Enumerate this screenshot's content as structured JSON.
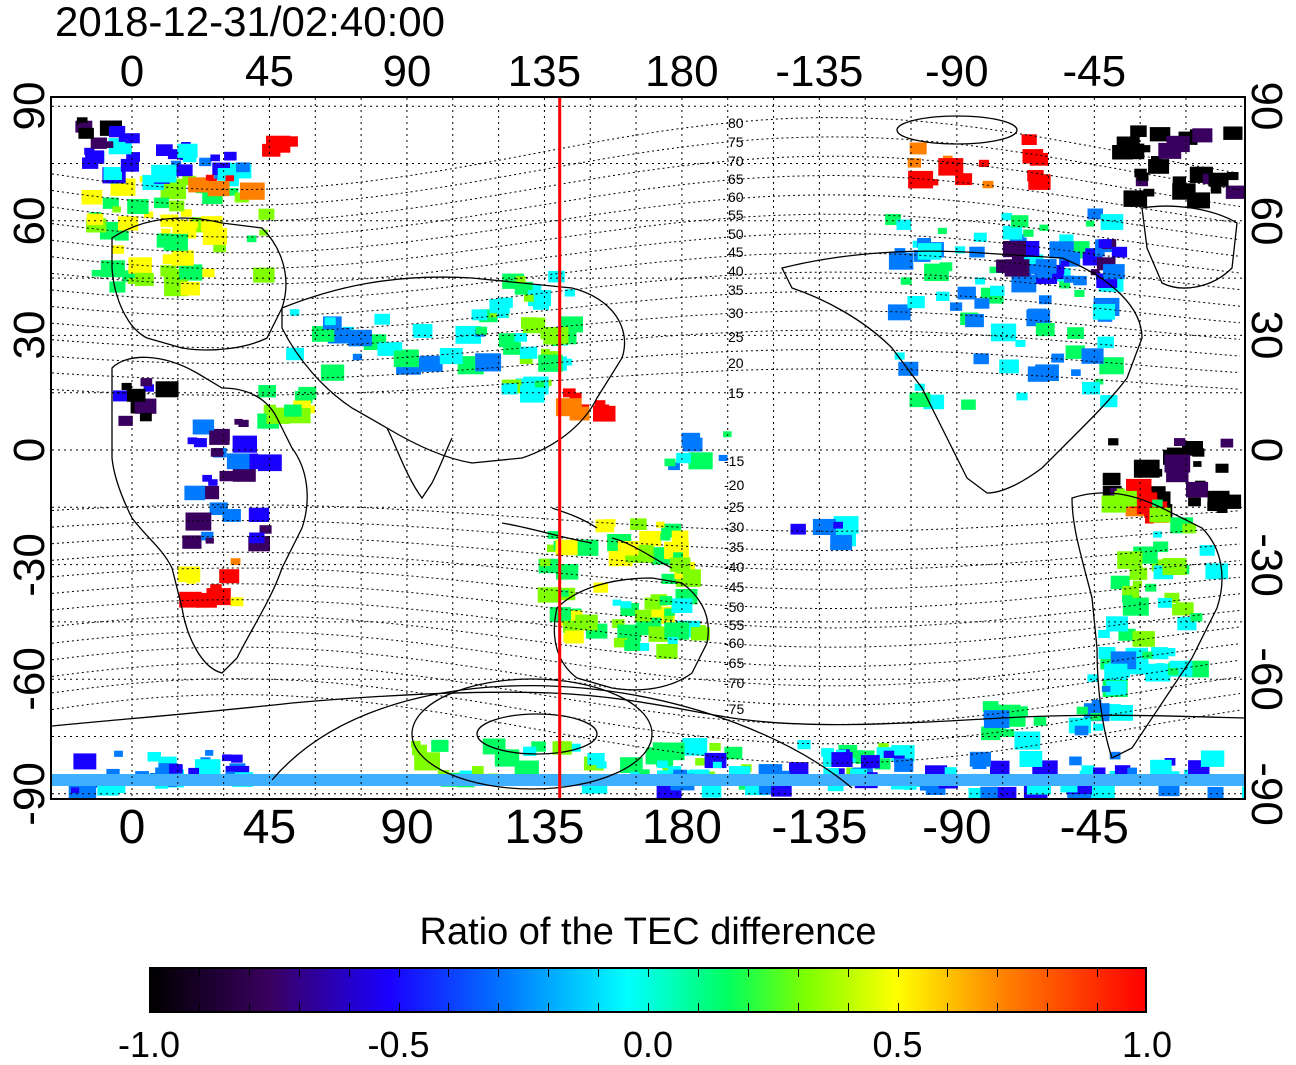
{
  "header": {
    "timestamp": "2018-12-31/02:40:00"
  },
  "map": {
    "projection": "equirectangular",
    "center_longitude": 135,
    "marker_longitude": 140,
    "marker_color": "#ff0000",
    "lon_ticks_top": [
      "0",
      "45",
      "90",
      "135",
      "180",
      "-135",
      "-90",
      "-45"
    ],
    "lon_ticks_bottom": [
      "0",
      "45",
      "90",
      "135",
      "180",
      "-135",
      "-90",
      "-45"
    ],
    "lat_ticks_left": [
      "90",
      "60",
      "30",
      "0",
      "-30",
      "-60",
      "-90"
    ],
    "lat_ticks_right": [
      "90",
      "60",
      "30",
      "0",
      "-30",
      "-60",
      "-90"
    ],
    "contour_labels_north": [
      "80",
      "75",
      "70",
      "65",
      "60",
      "55",
      "50",
      "45",
      "40",
      "35",
      "30",
      "25",
      "20",
      "15"
    ],
    "contour_labels_south": [
      "-15",
      "-20",
      "-25",
      "-30",
      "-35",
      "-40",
      "-45",
      "-50",
      "-55",
      "-60",
      "-65",
      "-70",
      "-75"
    ],
    "contour_stroke": "#000000"
  },
  "colorbar": {
    "title": "Ratio of the TEC difference",
    "min": -1.0,
    "max": 1.0,
    "tick_labels": [
      "-1.0",
      "-0.5",
      "0.0",
      "0.5",
      "1.0"
    ],
    "colors": [
      "#000000",
      "#3a0060",
      "#1a00ff",
      "#007bff",
      "#00ffff",
      "#00ff60",
      "#7fff00",
      "#ffff00",
      "#ff8000",
      "#ff0000"
    ]
  }
}
